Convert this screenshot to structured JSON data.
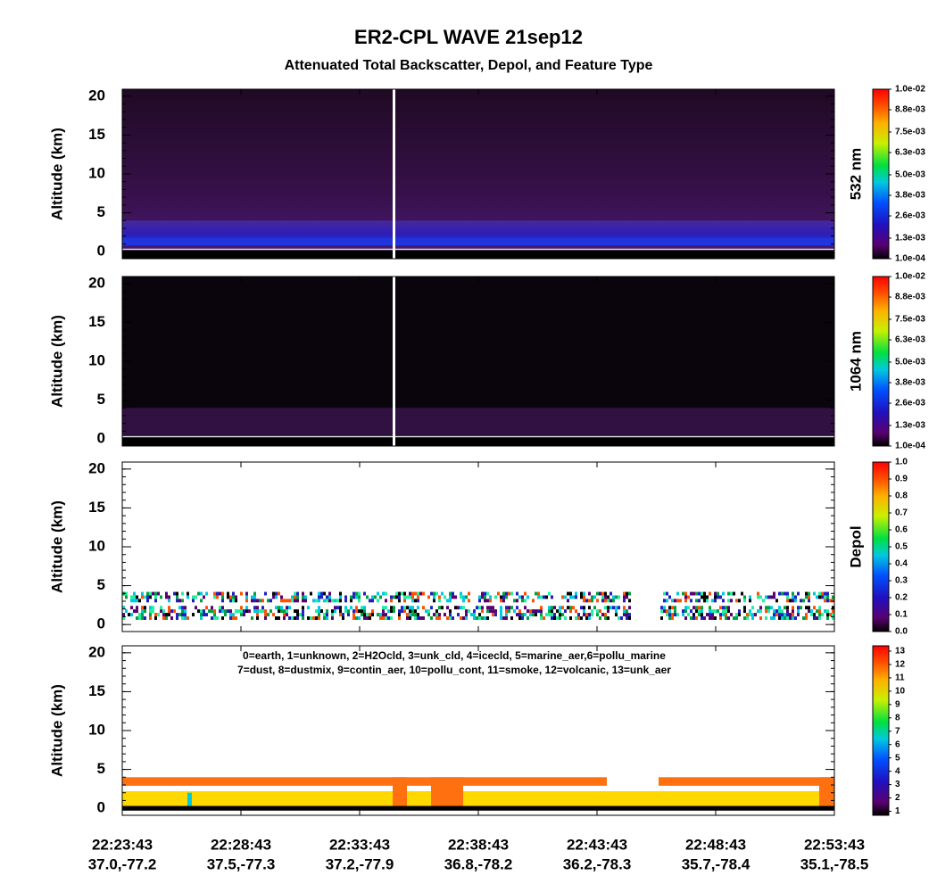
{
  "chart_data": {
    "type": "curtain",
    "title": "ER2-CPL WAVE 21sep12",
    "subtitle": "Attenuated Total Backscatter, Depol, and Feature Type",
    "x_labels": [
      {
        "time": "22:23:43",
        "location": "37.0,-77.2"
      },
      {
        "time": "22:28:43",
        "location": "37.5,-77.3"
      },
      {
        "time": "22:33:43",
        "location": "37.2,-77.9"
      },
      {
        "time": "22:38:43",
        "location": "36.8,-78.2"
      },
      {
        "time": "22:43:43",
        "location": "36.2,-78.3"
      },
      {
        "time": "22:48:43",
        "location": "35.7,-78.4"
      },
      {
        "time": "22:53:43",
        "location": "35.1,-78.5"
      }
    ],
    "panels": [
      {
        "ylabel": "Altitude (km)",
        "ylim": [
          -0.9,
          20.9
        ],
        "yticks": [
          0,
          5,
          10,
          15,
          20
        ],
        "colorbar_label": "532 nm",
        "clim": [
          0.0001,
          0.01
        ],
        "cticks": [
          {
            "value": 0.0001,
            "label": "1.0e-04"
          },
          {
            "value": 0.0013,
            "label": "1.3e-03"
          },
          {
            "value": 0.0026,
            "label": "2.6e-03"
          },
          {
            "value": 0.0038,
            "label": "3.8e-03"
          },
          {
            "value": 0.005,
            "label": "5.0e-03"
          },
          {
            "value": 0.0063,
            "label": "6.3e-03"
          },
          {
            "value": 0.0075,
            "label": "7.5e-03"
          },
          {
            "value": 0.0088,
            "label": "8.8e-03"
          },
          {
            "value": 0.01,
            "label": "1.0e-02"
          }
        ]
      },
      {
        "ylabel": "Altitude (km)",
        "ylim": [
          -0.9,
          20.9
        ],
        "yticks": [
          0,
          5,
          10,
          15,
          20
        ],
        "colorbar_label": "1064 nm",
        "clim": [
          0.0001,
          0.01
        ],
        "cticks": [
          {
            "value": 0.0001,
            "label": "1.0e-04"
          },
          {
            "value": 0.0013,
            "label": "1.3e-03"
          },
          {
            "value": 0.0026,
            "label": "2.6e-03"
          },
          {
            "value": 0.0038,
            "label": "3.8e-03"
          },
          {
            "value": 0.005,
            "label": "5.0e-03"
          },
          {
            "value": 0.0063,
            "label": "6.3e-03"
          },
          {
            "value": 0.0075,
            "label": "7.5e-03"
          },
          {
            "value": 0.0088,
            "label": "8.8e-03"
          },
          {
            "value": 0.01,
            "label": "1.0e-02"
          }
        ]
      },
      {
        "ylabel": "Altitude (km)",
        "ylim": [
          -0.9,
          20.9
        ],
        "yticks": [
          0,
          5,
          10,
          15,
          20
        ],
        "colorbar_label": "Depol",
        "clim": [
          0,
          1
        ],
        "cticks": [
          {
            "value": 0,
            "label": "0.0"
          },
          0.1,
          0.2,
          0.3,
          0.4,
          0.5,
          0.6,
          0.7,
          0.8,
          0.9,
          {
            "value": 1,
            "label": "1.0"
          }
        ]
      },
      {
        "ylabel": "Altitude (km)",
        "ylim": [
          -0.9,
          20.9
        ],
        "yticks": [
          0,
          5,
          10,
          15,
          20
        ],
        "clim": [
          0.7,
          13.4
        ],
        "cticks": [
          1,
          2,
          3,
          4,
          5,
          6,
          7,
          8,
          9,
          10,
          11,
          12,
          13
        ],
        "legend": [
          "0=earth, 1=unknown, 2=H2Ocld, 3=unk_cld, 4=icecld, 5=marine_aer,6=pollu_marine",
          "7=dust, 8=dustmix, 9=contin_aer, 10=pollu_cont, 11=smoke, 12=volcanic, 13=unk_aer"
        ]
      }
    ]
  }
}
